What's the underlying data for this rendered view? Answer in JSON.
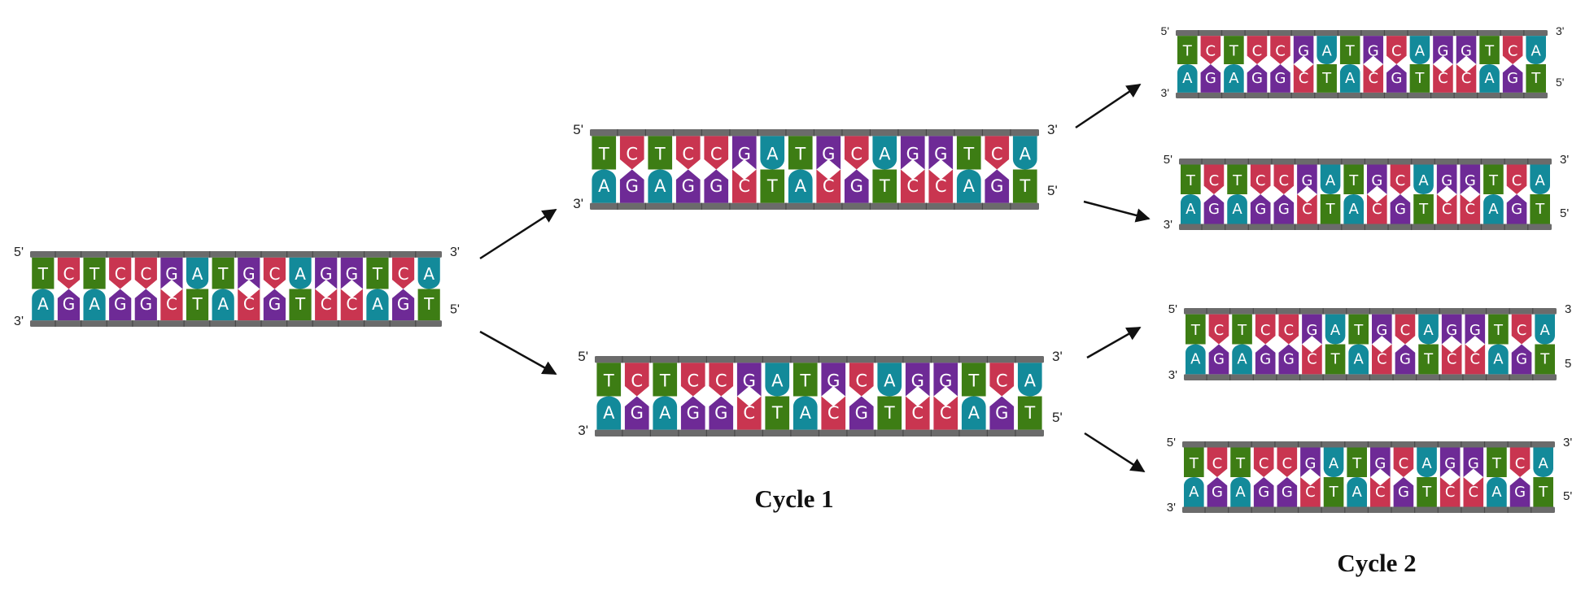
{
  "sequence": {
    "top": [
      "T",
      "C",
      "T",
      "C",
      "C",
      "G",
      "A",
      "T",
      "G",
      "C",
      "A",
      "G",
      "G",
      "T",
      "C",
      "A"
    ],
    "bottom": [
      "A",
      "G",
      "A",
      "G",
      "G",
      "C",
      "T",
      "A",
      "C",
      "G",
      "T",
      "C",
      "C",
      "A",
      "G",
      "T"
    ]
  },
  "colors": {
    "A": "#138a9a",
    "T": "#3d7d14",
    "C": "#c93550",
    "G": "#6e2a96",
    "backbone": "#6b6b6b",
    "arrow": "#111111"
  },
  "end_labels": {
    "five_prime": "5'",
    "three_prime": "3'"
  },
  "strands": [
    {
      "id": "parent"
    },
    {
      "id": "cycle1-top"
    },
    {
      "id": "cycle1-bottom"
    },
    {
      "id": "cycle2-1"
    },
    {
      "id": "cycle2-2"
    },
    {
      "id": "cycle2-3"
    },
    {
      "id": "cycle2-4"
    }
  ],
  "cycle_labels": [
    "Cycle 1",
    "Cycle 2"
  ]
}
